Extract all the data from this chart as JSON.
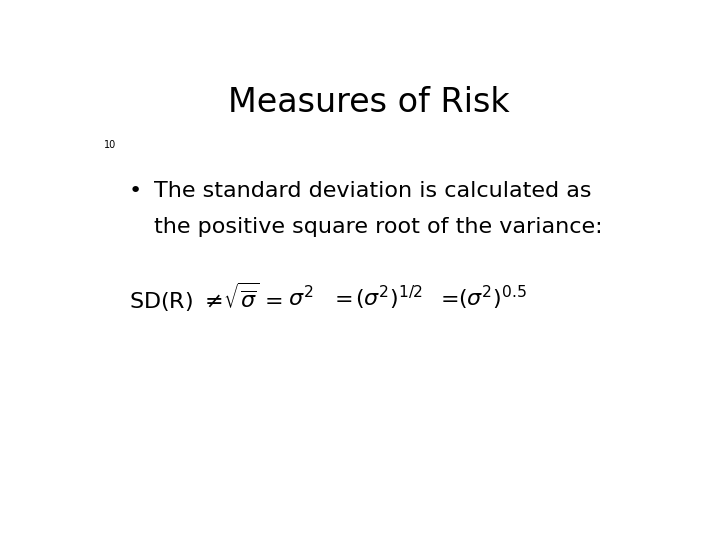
{
  "title": "Measures of Risk",
  "slide_number": "10",
  "background_color": "#ffffff",
  "text_color": "#000000",
  "title_fontsize": 24,
  "bullet_fontsize": 16,
  "formula_fontsize": 16,
  "slide_num_fontsize": 7,
  "bullet_text_line1": "The standard deviation is calculated as",
  "bullet_text_line2": "the positive square root of the variance:",
  "font_family": "DejaVu Sans"
}
